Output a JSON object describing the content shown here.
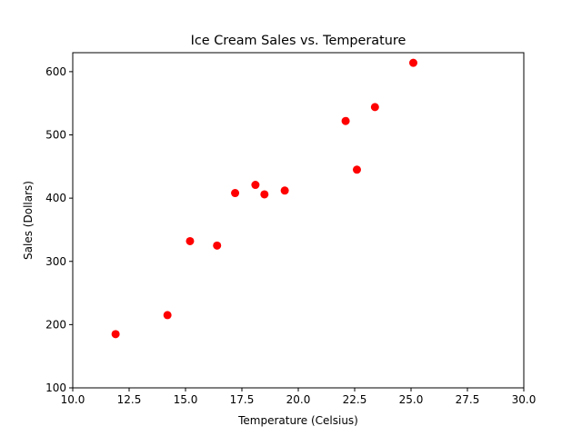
{
  "chart_data": {
    "type": "scatter",
    "title": "Ice Cream Sales vs. Temperature",
    "xlabel": "Temperature (Celsius)",
    "ylabel": "Sales (Dollars)",
    "xlim": [
      10,
      30
    ],
    "ylim": [
      100,
      630
    ],
    "xticks": [
      10.0,
      12.5,
      15.0,
      17.5,
      20.0,
      22.5,
      25.0,
      27.5,
      30.0
    ],
    "xtick_labels": [
      "10.0",
      "12.5",
      "15.0",
      "17.5",
      "20.0",
      "22.5",
      "25.0",
      "27.5",
      "30.0"
    ],
    "yticks": [
      100,
      200,
      300,
      400,
      500,
      600
    ],
    "ytick_labels": [
      "100",
      "200",
      "300",
      "400",
      "500",
      "600"
    ],
    "grid": false,
    "marker_color": "#ff0000",
    "points": [
      {
        "x": 11.9,
        "y": 185
      },
      {
        "x": 14.2,
        "y": 215
      },
      {
        "x": 15.2,
        "y": 332
      },
      {
        "x": 16.4,
        "y": 325
      },
      {
        "x": 17.2,
        "y": 408
      },
      {
        "x": 18.1,
        "y": 421
      },
      {
        "x": 18.5,
        "y": 406
      },
      {
        "x": 19.4,
        "y": 412
      },
      {
        "x": 22.1,
        "y": 522
      },
      {
        "x": 22.6,
        "y": 445
      },
      {
        "x": 23.4,
        "y": 544
      },
      {
        "x": 25.1,
        "y": 614
      }
    ]
  }
}
